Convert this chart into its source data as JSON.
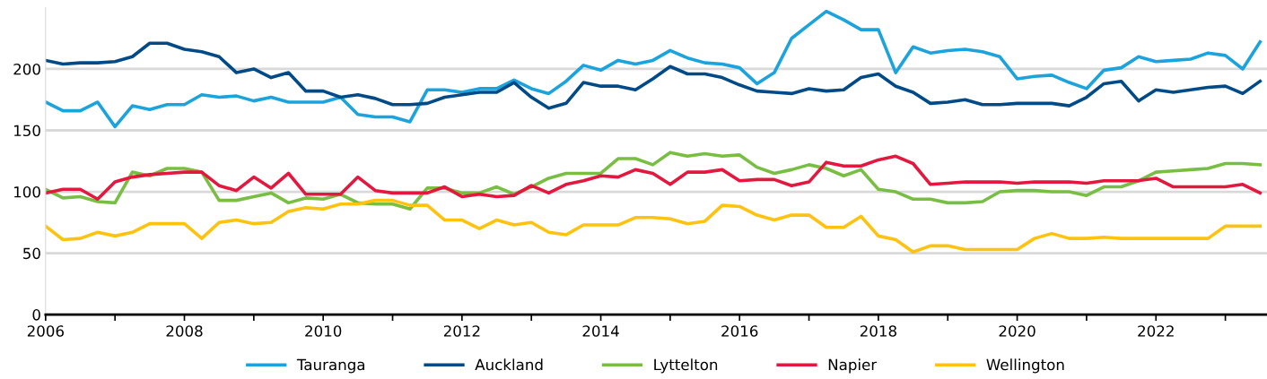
{
  "chart_data": {
    "type": "line",
    "x": [
      2006,
      2006.25,
      2006.5,
      2006.75,
      2007,
      2007.25,
      2007.5,
      2007.75,
      2008,
      2008.25,
      2008.5,
      2008.75,
      2009,
      2009.25,
      2009.5,
      2009.75,
      2010,
      2010.25,
      2010.5,
      2010.75,
      2011,
      2011.25,
      2011.5,
      2011.75,
      2012,
      2012.25,
      2012.5,
      2012.75,
      2013,
      2013.25,
      2013.5,
      2013.75,
      2014,
      2014.25,
      2014.5,
      2014.75,
      2015,
      2015.25,
      2015.5,
      2015.75,
      2016,
      2016.25,
      2016.5,
      2016.75,
      2017,
      2017.25,
      2017.5,
      2017.75,
      2018,
      2018.25,
      2018.5,
      2018.75,
      2019,
      2019.25,
      2019.5,
      2019.75,
      2020,
      2020.25,
      2020.5,
      2020.75,
      2021,
      2021.25,
      2021.5,
      2021.75,
      2022,
      2022.25,
      2022.5,
      2022.75,
      2023,
      2023.25,
      2023.5
    ],
    "series": [
      {
        "name": "Tauranga",
        "color": "#1aa3dd",
        "values": [
          173,
          166,
          166,
          173,
          153,
          170,
          167,
          171,
          171,
          179,
          177,
          178,
          174,
          177,
          173,
          173,
          173,
          177,
          163,
          161,
          161,
          157,
          183,
          183,
          181,
          184,
          184,
          191,
          184,
          180,
          190,
          203,
          199,
          207,
          204,
          207,
          215,
          209,
          205,
          204,
          201,
          188,
          197,
          225,
          236,
          247,
          240,
          232,
          232,
          197,
          218,
          213,
          215,
          216,
          214,
          210,
          192,
          194,
          195,
          189,
          184,
          199,
          201,
          210,
          206,
          207,
          208,
          213,
          211,
          200,
          222
        ]
      },
      {
        "name": "Auckland",
        "color": "#004b87",
        "values": [
          207,
          204,
          205,
          205,
          206,
          210,
          221,
          221,
          216,
          214,
          210,
          197,
          200,
          193,
          197,
          182,
          182,
          177,
          179,
          176,
          171,
          171,
          172,
          177,
          179,
          181,
          181,
          189,
          177,
          168,
          172,
          189,
          186,
          186,
          183,
          192,
          202,
          196,
          196,
          193,
          187,
          182,
          181,
          180,
          184,
          182,
          183,
          193,
          196,
          186,
          181,
          172,
          173,
          175,
          171,
          171,
          172,
          172,
          172,
          170,
          177,
          188,
          190,
          174,
          183,
          181,
          183,
          185,
          186,
          180,
          190
        ]
      },
      {
        "name": "Lyttelton",
        "color": "#78be43",
        "values": [
          102,
          95,
          96,
          92,
          91,
          116,
          113,
          119,
          119,
          116,
          93,
          93,
          96,
          99,
          91,
          95,
          94,
          98,
          91,
          90,
          90,
          86,
          103,
          103,
          99,
          99,
          104,
          98,
          104,
          111,
          115,
          115,
          115,
          127,
          127,
          122,
          132,
          129,
          131,
          129,
          130,
          120,
          115,
          118,
          122,
          119,
          113,
          118,
          102,
          100,
          94,
          94,
          91,
          91,
          92,
          100,
          101,
          101,
          100,
          100,
          97,
          104,
          104,
          109,
          116,
          117,
          118,
          119,
          123,
          123,
          122
        ]
      },
      {
        "name": "Napier",
        "color": "#e4173e",
        "values": [
          99,
          102,
          102,
          94,
          108,
          112,
          114,
          115,
          116,
          116,
          105,
          101,
          112,
          103,
          115,
          98,
          98,
          98,
          112,
          101,
          99,
          99,
          99,
          104,
          96,
          98,
          96,
          97,
          105,
          99,
          106,
          109,
          113,
          112,
          118,
          115,
          106,
          116,
          116,
          118,
          109,
          110,
          110,
          105,
          108,
          124,
          121,
          121,
          126,
          129,
          123,
          106,
          107,
          108,
          108,
          108,
          107,
          108,
          108,
          108,
          107,
          109,
          109,
          109,
          111,
          104,
          104,
          104,
          104,
          106,
          99
        ]
      },
      {
        "name": "Wellington",
        "color": "#ffc20e",
        "values": [
          72,
          61,
          62,
          67,
          64,
          67,
          74,
          74,
          74,
          62,
          75,
          77,
          74,
          75,
          84,
          87,
          86,
          90,
          90,
          93,
          93,
          89,
          89,
          77,
          77,
          70,
          77,
          73,
          75,
          67,
          65,
          73,
          73,
          73,
          79,
          79,
          78,
          74,
          76,
          89,
          88,
          81,
          77,
          81,
          81,
          71,
          71,
          80,
          64,
          61,
          51,
          56,
          56,
          53,
          53,
          53,
          53,
          62,
          66,
          62,
          62,
          63,
          62,
          62,
          62,
          62,
          62,
          62,
          72,
          72,
          72
        ]
      }
    ],
    "xlim": [
      2006,
      2023.6
    ],
    "xticks": [
      2006,
      {
        "value": 2007,
        "label": null
      },
      2008,
      {
        "value": 2009,
        "label": null
      },
      2010,
      {
        "value": 2011,
        "label": null
      },
      2012,
      {
        "value": 2013,
        "label": null
      },
      2014,
      {
        "value": 2015,
        "label": null
      },
      2016,
      {
        "value": 2017,
        "label": null
      },
      2018,
      {
        "value": 2019,
        "label": null
      },
      2020,
      {
        "value": 2021,
        "label": null
      },
      2022,
      {
        "value": 2023,
        "label": null
      }
    ],
    "ylim": [
      0,
      250
    ],
    "yticks": [
      0,
      50,
      100,
      150,
      200
    ],
    "grid": "y",
    "legend": "bottom",
    "marker": "none",
    "line_style": "solid"
  }
}
